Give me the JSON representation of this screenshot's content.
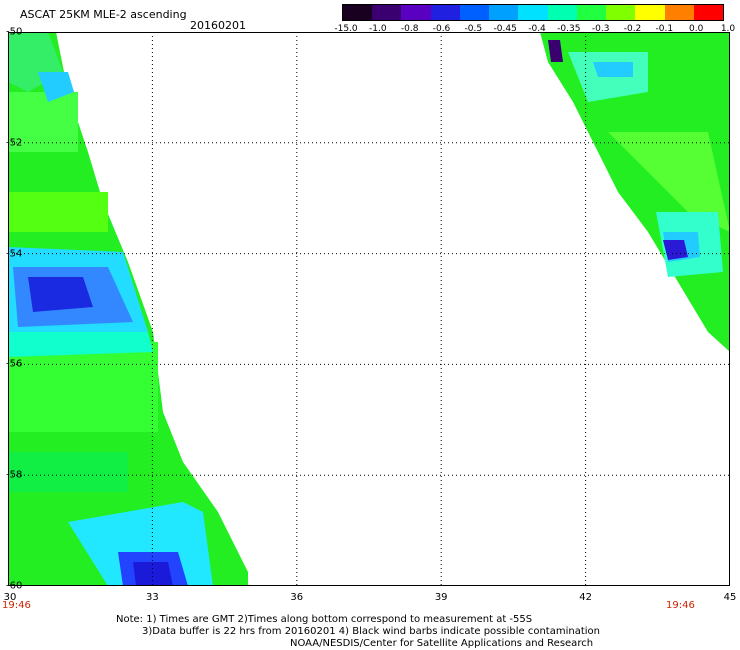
{
  "header": {
    "title": "ASCAT 25KM MLE-2 ascending",
    "date": "20160201"
  },
  "colorbar": {
    "labels": [
      "-15.0",
      "-1.0",
      "-0.8",
      "-0.6",
      "-0.5",
      "-0.45",
      "-0.4",
      "-0.35",
      "-0.3",
      "-0.2",
      "-0.1",
      "0.0",
      "1.0"
    ],
    "colors": [
      "#1a0020",
      "#3a0070",
      "#5a00c0",
      "#2020e0",
      "#0060ff",
      "#00a0ff",
      "#00e0ff",
      "#00ffb0",
      "#20ff40",
      "#80ff00",
      "#ffff00",
      "#ff8000",
      "#ff0000"
    ]
  },
  "map": {
    "lon_ticks": [
      "30",
      "33",
      "36",
      "39",
      "42",
      "45"
    ],
    "lat_ticks": [
      "-50",
      "-52",
      "-54",
      "-56",
      "-58",
      "-60"
    ],
    "lon_range": [
      30,
      45
    ],
    "lat_range": [
      -60,
      -50
    ],
    "time_left": "19:46",
    "time_right": "19:46"
  },
  "notes": {
    "line1": "Note: 1) Times are GMT 2)Times along bottom correspond to measurement at -55S",
    "line2": "3)Data buffer is 22 hrs from 20160201 4) Black wind barbs indicate possible contamination",
    "line3": "NOAA/NESDIS/Center for Satellite Applications and Research"
  }
}
